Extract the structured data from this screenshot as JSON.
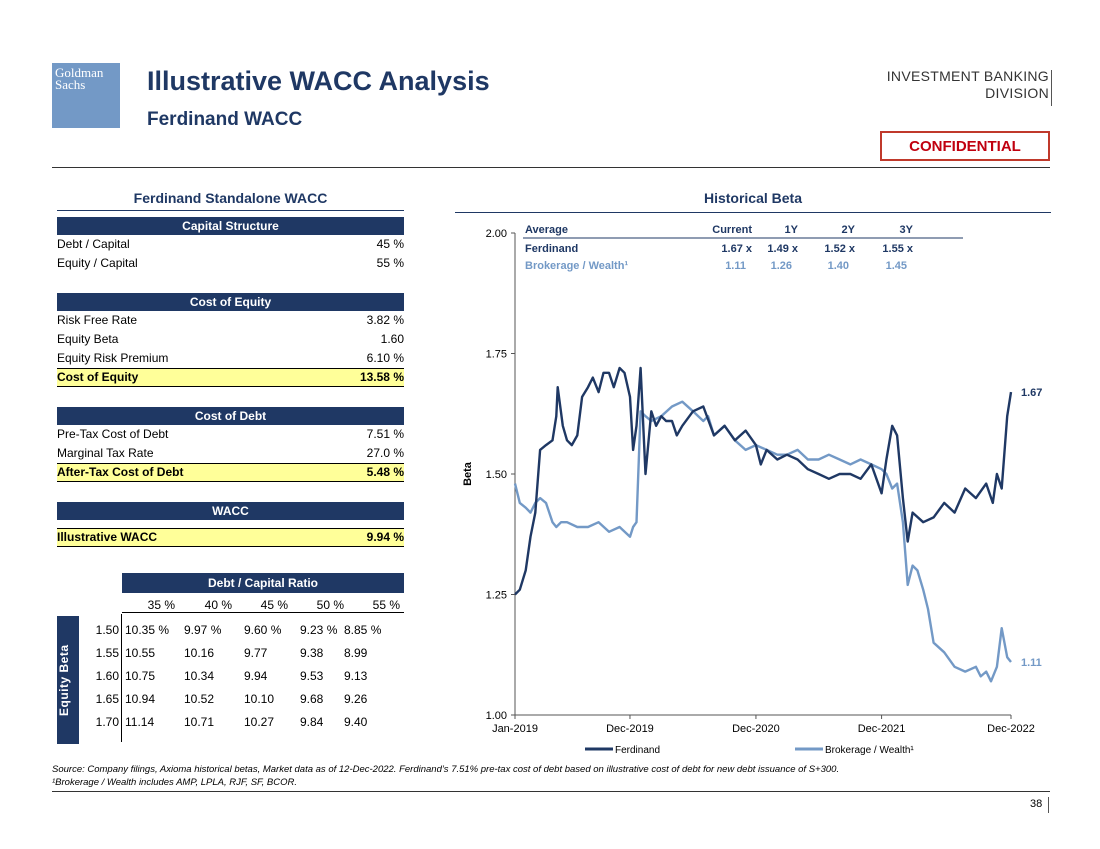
{
  "header": {
    "logo_line1": "Goldman",
    "logo_line2": "Sachs",
    "title": "Illustrative WACC Analysis",
    "subtitle": "Ferdinand WACC",
    "division_line1": "INVESTMENT BANKING",
    "division_line2": "DIVISION",
    "confidential": "CONFIDENTIAL"
  },
  "wacc": {
    "title": "Ferdinand Standalone WACC",
    "capital_structure": {
      "band": "Capital Structure",
      "rows": [
        {
          "label": "Debt / Capital",
          "value": "45 %"
        },
        {
          "label": "Equity / Capital",
          "value": "55 %"
        }
      ]
    },
    "cost_of_equity": {
      "band": "Cost of Equity",
      "rows": [
        {
          "label": "Risk Free Rate",
          "value": "3.82 %"
        },
        {
          "label": "Equity Beta",
          "value": "1.60"
        },
        {
          "label": "Equity Risk Premium",
          "value": "6.10 %"
        }
      ],
      "total": {
        "label": "Cost of Equity",
        "value": "13.58 %"
      }
    },
    "cost_of_debt": {
      "band": "Cost of Debt",
      "rows": [
        {
          "label": "Pre-Tax Cost of Debt",
          "value": "7.51 %"
        },
        {
          "label": "Marginal Tax Rate",
          "value": "27.0 %"
        }
      ],
      "total": {
        "label": "After-Tax Cost of Debt",
        "value": "5.48 %"
      }
    },
    "wacc_section": {
      "band": "WACC",
      "total": {
        "label": "Illustrative WACC",
        "value": "9.94 %"
      }
    }
  },
  "sensitivity": {
    "header": "Debt / Capital Ratio",
    "side_label": "Equity Beta",
    "columns": [
      "35 %",
      "40 %",
      "45 %",
      "50 %",
      "55 %"
    ],
    "rows": [
      {
        "beta": "1.50",
        "values": [
          "10.35 %",
          "9.97 %",
          "9.60 %",
          "9.23 %",
          "8.85 %"
        ]
      },
      {
        "beta": "1.55",
        "values": [
          "10.55",
          "10.16",
          "9.77",
          "9.38",
          "8.99"
        ]
      },
      {
        "beta": "1.60",
        "values": [
          "10.75",
          "10.34",
          "9.94",
          "9.53",
          "9.13"
        ]
      },
      {
        "beta": "1.65",
        "values": [
          "10.94",
          "10.52",
          "10.10",
          "9.68",
          "9.26"
        ]
      },
      {
        "beta": "1.70",
        "values": [
          "11.14",
          "10.71",
          "10.27",
          "9.84",
          "9.40"
        ]
      }
    ]
  },
  "chart_data": {
    "type": "line",
    "title": "Historical Beta",
    "ylabel": "Beta",
    "xlabel": "",
    "ylim": [
      1.0,
      2.0
    ],
    "yticks": [
      "1.00",
      "1.25",
      "1.50",
      "1.75",
      "2.00"
    ],
    "xticks": [
      "Jan-2019",
      "Dec-2019",
      "Dec-2020",
      "Dec-2021",
      "Dec-2022"
    ],
    "colors": {
      "ferdinand": "#1F3864",
      "brokerage": "#7399C6"
    },
    "end_labels": {
      "ferdinand": "1.67",
      "brokerage": "1.11"
    },
    "legend": [
      "Ferdinand",
      "Brokerage / Wealth¹"
    ],
    "legend_position": "bottom",
    "summary_table": {
      "headers": [
        "Average",
        "Current",
        "1Y",
        "2Y",
        "3Y"
      ],
      "rows": [
        {
          "name": "Ferdinand",
          "values": [
            "1.67 x",
            "1.49 x",
            "1.52 x",
            "1.55 x"
          ]
        },
        {
          "name": "Brokerage / Wealth¹",
          "values": [
            "1.11",
            "1.26",
            "1.40",
            "1.45"
          ]
        }
      ]
    },
    "series": [
      {
        "name": "Ferdinand",
        "color": "#1F3864",
        "x": [
          "2019-01-01",
          "2019-01-15",
          "2019-02-01",
          "2019-02-15",
          "2019-03-01",
          "2019-03-15",
          "2019-04-01",
          "2019-04-20",
          "2019-05-01",
          "2019-05-05",
          "2019-05-20",
          "2019-06-01",
          "2019-06-15",
          "2019-07-01",
          "2019-07-15",
          "2019-08-01",
          "2019-08-15",
          "2019-09-01",
          "2019-09-15",
          "2019-10-01",
          "2019-10-15",
          "2019-11-01",
          "2019-11-15",
          "2019-12-01",
          "2019-12-10",
          "2019-12-20",
          "2020-01-01",
          "2020-01-15",
          "2020-02-01",
          "2020-02-15",
          "2020-03-01",
          "2020-03-15",
          "2020-04-01",
          "2020-04-15",
          "2020-05-01",
          "2020-06-01",
          "2020-07-01",
          "2020-08-01",
          "2020-09-01",
          "2020-10-01",
          "2020-11-01",
          "2020-12-01",
          "2020-12-15",
          "2021-01-01",
          "2021-02-01",
          "2021-03-01",
          "2021-04-01",
          "2021-05-01",
          "2021-06-01",
          "2021-07-01",
          "2021-08-01",
          "2021-09-01",
          "2021-10-01",
          "2021-11-01",
          "2021-12-01",
          "2021-12-15",
          "2022-01-01",
          "2022-01-15",
          "2022-02-01",
          "2022-02-15",
          "2022-03-01",
          "2022-04-01",
          "2022-05-01",
          "2022-06-01",
          "2022-07-01",
          "2022-08-01",
          "2022-09-01",
          "2022-10-01",
          "2022-10-20",
          "2022-11-01",
          "2022-11-15",
          "2022-12-01",
          "2022-12-12"
        ],
        "values": [
          1.25,
          1.26,
          1.3,
          1.37,
          1.42,
          1.55,
          1.56,
          1.57,
          1.62,
          1.68,
          1.6,
          1.57,
          1.56,
          1.58,
          1.66,
          1.68,
          1.7,
          1.67,
          1.71,
          1.71,
          1.68,
          1.72,
          1.71,
          1.66,
          1.55,
          1.6,
          1.72,
          1.5,
          1.63,
          1.6,
          1.62,
          1.61,
          1.61,
          1.58,
          1.6,
          1.63,
          1.64,
          1.58,
          1.6,
          1.57,
          1.59,
          1.56,
          1.52,
          1.55,
          1.53,
          1.54,
          1.53,
          1.51,
          1.5,
          1.49,
          1.5,
          1.5,
          1.49,
          1.52,
          1.46,
          1.53,
          1.6,
          1.58,
          1.45,
          1.36,
          1.42,
          1.4,
          1.41,
          1.44,
          1.42,
          1.47,
          1.45,
          1.48,
          1.44,
          1.5,
          1.47,
          1.62,
          1.67
        ]
      },
      {
        "name": "Brokerage / Wealth¹",
        "color": "#7399C6",
        "x": [
          "2019-01-01",
          "2019-01-15",
          "2019-02-01",
          "2019-02-15",
          "2019-03-01",
          "2019-03-15",
          "2019-04-01",
          "2019-04-20",
          "2019-05-01",
          "2019-05-15",
          "2019-06-01",
          "2019-07-01",
          "2019-08-01",
          "2019-09-01",
          "2019-10-01",
          "2019-11-01",
          "2019-12-01",
          "2019-12-10",
          "2019-12-20",
          "2020-01-01",
          "2020-01-15",
          "2020-02-01",
          "2020-03-01",
          "2020-04-01",
          "2020-05-01",
          "2020-06-01",
          "2020-07-01",
          "2020-07-15",
          "2020-08-01",
          "2020-09-01",
          "2020-10-01",
          "2020-11-01",
          "2020-12-01",
          "2021-01-01",
          "2021-02-01",
          "2021-03-01",
          "2021-04-01",
          "2021-05-01",
          "2021-06-01",
          "2021-07-01",
          "2021-08-01",
          "2021-09-01",
          "2021-10-01",
          "2021-11-01",
          "2021-12-01",
          "2021-12-15",
          "2022-01-01",
          "2022-01-15",
          "2022-02-01",
          "2022-02-15",
          "2022-03-01",
          "2022-03-15",
          "2022-04-01",
          "2022-04-15",
          "2022-05-01",
          "2022-06-01",
          "2022-07-01",
          "2022-08-01",
          "2022-09-01",
          "2022-09-15",
          "2022-10-01",
          "2022-10-15",
          "2022-11-01",
          "2022-11-15",
          "2022-12-01",
          "2022-12-12"
        ],
        "values": [
          1.48,
          1.44,
          1.43,
          1.42,
          1.44,
          1.45,
          1.44,
          1.4,
          1.39,
          1.4,
          1.4,
          1.39,
          1.39,
          1.4,
          1.38,
          1.39,
          1.37,
          1.39,
          1.4,
          1.63,
          1.62,
          1.61,
          1.62,
          1.64,
          1.65,
          1.63,
          1.61,
          1.62,
          1.58,
          1.6,
          1.57,
          1.55,
          1.56,
          1.55,
          1.54,
          1.54,
          1.55,
          1.53,
          1.53,
          1.54,
          1.53,
          1.52,
          1.53,
          1.52,
          1.51,
          1.5,
          1.47,
          1.48,
          1.4,
          1.27,
          1.31,
          1.3,
          1.26,
          1.22,
          1.15,
          1.13,
          1.1,
          1.09,
          1.1,
          1.08,
          1.09,
          1.07,
          1.1,
          1.18,
          1.12,
          1.11
        ]
      }
    ]
  },
  "footer": {
    "source": "Source: Company filings, Axioma historical betas, Market data as of 12-Dec-2022. Ferdinand’s 7.51% pre-tax cost of debt based on illustrative cost of debt for new debt issuance of S+300.",
    "note": "¹Brokerage / Wealth includes AMP, LPLA, RJF, SF, BCOR.",
    "page": "38"
  }
}
